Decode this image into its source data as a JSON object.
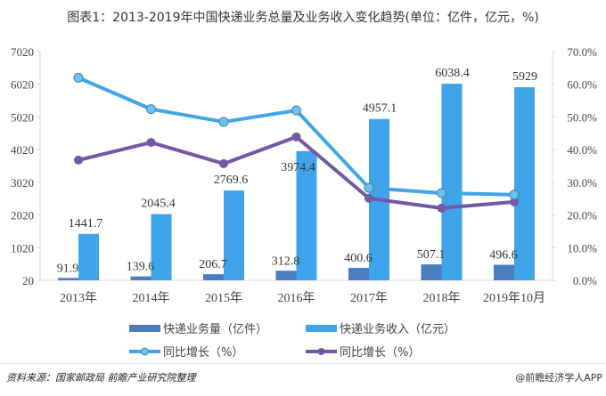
{
  "title": "图表1：2013-2019年中国快递业务总量及业务收入变化趋势(单位：亿件，亿元，%)",
  "footer": {
    "source": "资料来源：国家邮政局 前瞻产业研究院整理",
    "brand": "@前瞻经济学人APP"
  },
  "colors": {
    "volume_bar": "#4a7dc0",
    "revenue_bar": "#3fa4e9",
    "volume_growth_line": "#41a6e3",
    "volume_growth_marker": "#6cc3ef",
    "revenue_growth_line": "#7358a3"
  },
  "chart_data": {
    "type": "bar+line",
    "title": "图表1：2013-2019年中国快递业务总量及业务收入变化趋势(单位：亿件，亿元，%)",
    "categories": [
      "2013年",
      "2014年",
      "2015年",
      "2016年",
      "2017年",
      "2018年",
      "2019年10月"
    ],
    "y_left": {
      "ticks": [
        "20",
        "1020",
        "2020",
        "3020",
        "4020",
        "5020",
        "6020",
        "7020"
      ],
      "range": [
        20,
        7020
      ]
    },
    "y_right": {
      "ticks": [
        "0.0%",
        "10.0%",
        "20.0%",
        "30.0%",
        "40.0%",
        "50.0%",
        "60.0%",
        "70.0%"
      ],
      "range": [
        0,
        70
      ]
    },
    "series": [
      {
        "name": "快递业务量（亿件）",
        "type": "bar",
        "axis": "left",
        "values": [
          91.9,
          139.6,
          206.7,
          312.8,
          400.6,
          507.1,
          496.6
        ],
        "labels": [
          "91.9",
          "139.6",
          "206.7",
          "312.8",
          "400.6",
          "507.1",
          "496.6"
        ]
      },
      {
        "name": "快递业务收入（亿元）",
        "type": "bar",
        "axis": "left",
        "values": [
          1441.7,
          2045.4,
          2769.6,
          3974.4,
          4957.1,
          6038.4,
          5929
        ],
        "labels": [
          "1441.7",
          "2045.4",
          "2769.6",
          "3974.4",
          "4957.1",
          "6038.4",
          "5929"
        ]
      },
      {
        "name": "同比增长（%）",
        "type": "line",
        "axis": "right",
        "marker": "hollow-circle",
        "values": [
          62.0,
          52.4,
          48.5,
          52.0,
          28.3,
          26.7,
          26.2
        ]
      },
      {
        "name": "同比增长（%）",
        "type": "line",
        "axis": "right",
        "marker": "filled-circle",
        "values": [
          36.8,
          42.2,
          35.7,
          43.9,
          25.1,
          22.1,
          24.0
        ]
      }
    ],
    "grid": false,
    "legend_position": "bottom"
  }
}
